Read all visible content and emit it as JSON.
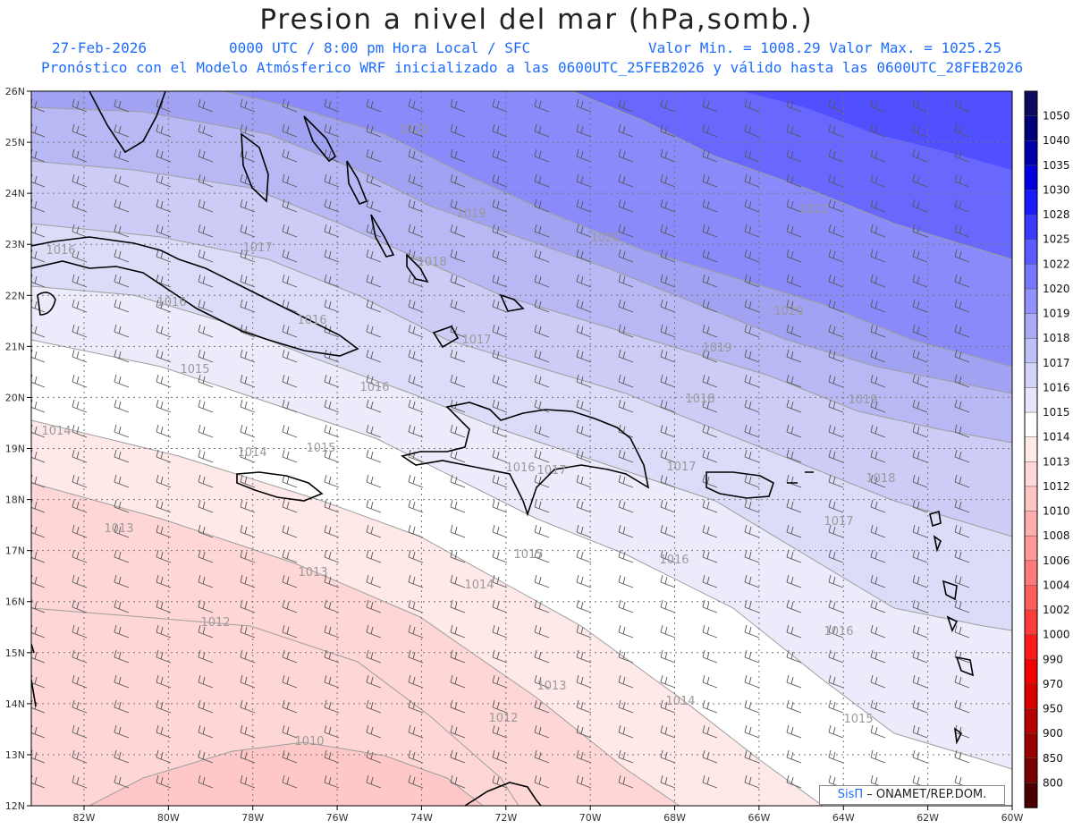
{
  "header": {
    "title": "Presion a nivel del mar (hPa,somb.)",
    "date": "27-Feb-2026",
    "time": "0000 UTC / 8:00 pm Hora Local / SFC",
    "range": "Valor Min. = 1008.29  Valor Max. = 1025.25",
    "model_info": "Pronóstico con el Modelo Atmósferico WRF inicializado a las 0600UTC_25FEB2026 y válido hasta las  0600UTC_28FEB2026"
  },
  "axes": {
    "lat_labels": [
      "26N",
      "25N",
      "24N",
      "23N",
      "22N",
      "21N",
      "20N",
      "19N",
      "18N",
      "17N",
      "16N",
      "15N",
      "14N",
      "13N",
      "12N"
    ],
    "lon_labels": [
      "82W",
      "80W",
      "78W",
      "76W",
      "74W",
      "72W",
      "70W",
      "68W",
      "66W",
      "64W",
      "62W",
      "60W"
    ]
  },
  "contour_labels": [
    {
      "text": "1020"
    },
    {
      "text": "1019"
    },
    {
      "text": "1020"
    },
    {
      "text": "1022"
    },
    {
      "text": "1018"
    },
    {
      "text": "1017"
    },
    {
      "text": "1016"
    },
    {
      "text": "1016"
    },
    {
      "text": "1016"
    },
    {
      "text": "1017"
    },
    {
      "text": "1020"
    },
    {
      "text": "1019"
    },
    {
      "text": "1015"
    },
    {
      "text": "1016"
    },
    {
      "text": "1018"
    },
    {
      "text": "1019"
    },
    {
      "text": "1014"
    },
    {
      "text": "1015"
    },
    {
      "text": "1014"
    },
    {
      "text": "1016"
    },
    {
      "text": "1017"
    },
    {
      "text": "1017"
    },
    {
      "text": "1018"
    },
    {
      "text": "1017"
    },
    {
      "text": "1013"
    },
    {
      "text": "1015"
    },
    {
      "text": "1016"
    },
    {
      "text": "1013"
    },
    {
      "text": "1014"
    },
    {
      "text": "1012"
    },
    {
      "text": "1016"
    },
    {
      "text": "1013"
    },
    {
      "text": "1012"
    },
    {
      "text": "1014"
    },
    {
      "text": "1015"
    },
    {
      "text": "1010"
    }
  ],
  "colorbar": [
    {
      "label": "1050",
      "color": "#0a0a5e"
    },
    {
      "label": "1040",
      "color": "#00007a"
    },
    {
      "label": "1035",
      "color": "#0000a8"
    },
    {
      "label": "1030",
      "color": "#0000e0"
    },
    {
      "label": "1028",
      "color": "#1a1aff"
    },
    {
      "label": "1025",
      "color": "#3a3aff"
    },
    {
      "label": "1022",
      "color": "#5a5aff"
    },
    {
      "label": "1020",
      "color": "#7878ff"
    },
    {
      "label": "1019",
      "color": "#9292ff"
    },
    {
      "label": "1018",
      "color": "#aaaaf6"
    },
    {
      "label": "1017",
      "color": "#c0c0f6"
    },
    {
      "label": "1016",
      "color": "#d4d4f8"
    },
    {
      "label": "1015",
      "color": "#e6e6fb"
    },
    {
      "label": "1014",
      "color": "#ffffff"
    },
    {
      "label": "1013",
      "color": "#ffeaea"
    },
    {
      "label": "1012",
      "color": "#ffd8d8"
    },
    {
      "label": "1010",
      "color": "#ffc4c4"
    },
    {
      "label": "1008",
      "color": "#ffaeae"
    },
    {
      "label": "1006",
      "color": "#ff9898"
    },
    {
      "label": "1004",
      "color": "#ff7a7a"
    },
    {
      "label": "1002",
      "color": "#ff5c5c"
    },
    {
      "label": "1000",
      "color": "#ff3c3c"
    },
    {
      "label": "990",
      "color": "#ff1a1a"
    },
    {
      "label": "970",
      "color": "#f00000"
    },
    {
      "label": "950",
      "color": "#d80000"
    },
    {
      "label": "900",
      "color": "#b80000"
    },
    {
      "label": "850",
      "color": "#980000"
    },
    {
      "label": "800",
      "color": "#780000"
    },
    {
      "label": "",
      "color": "#4a0000"
    }
  ],
  "credit": {
    "logo": "SisΠ",
    "text": "– ONAMET/REP.DOM."
  }
}
